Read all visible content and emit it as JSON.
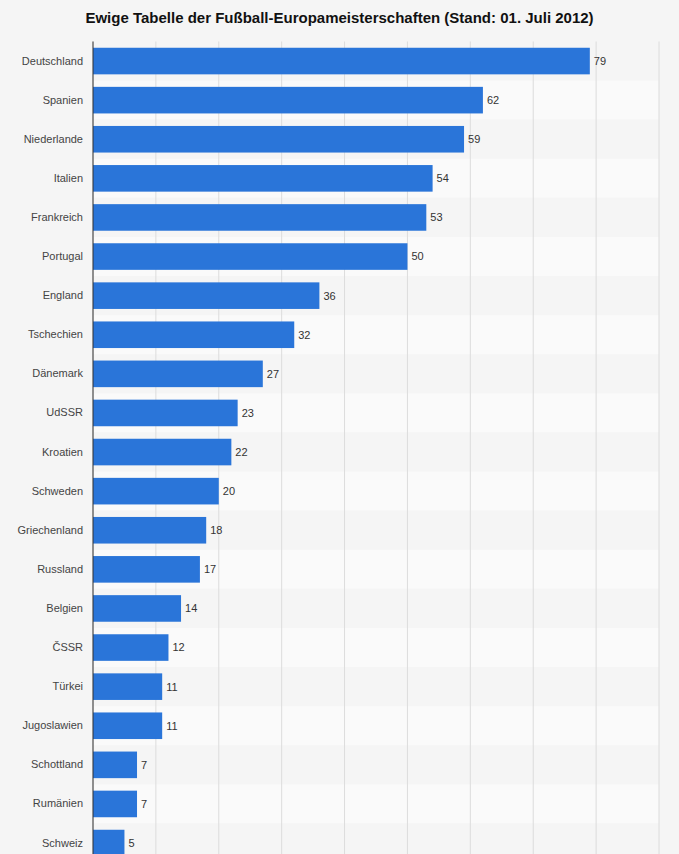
{
  "chart_data": {
    "type": "bar",
    "orientation": "horizontal",
    "title": "Ewige Tabelle der Fußball-Europameisterschaften (Stand: 01. Juli 2012)",
    "categories": [
      "Deutschland",
      "Spanien",
      "Niederlande",
      "Italien",
      "Frankreich",
      "Portugal",
      "England",
      "Tschechien",
      "Dänemark",
      "UdSSR",
      "Kroatien",
      "Schweden",
      "Griechenland",
      "Russland",
      "Belgien",
      "ČSSR",
      "Türkei",
      "Jugoslawien",
      "Schottland",
      "Rumänien",
      "Schweiz"
    ],
    "values": [
      79,
      62,
      59,
      54,
      53,
      50,
      36,
      32,
      27,
      23,
      22,
      20,
      18,
      17,
      14,
      12,
      11,
      11,
      7,
      7,
      5
    ],
    "color": "#2a75d9",
    "xlim": [
      0,
      90
    ],
    "xticks": [
      0,
      10,
      20,
      30,
      40,
      50,
      60,
      70,
      80,
      90
    ],
    "grid": true,
    "data_labels": true,
    "tick_labels": "y"
  }
}
